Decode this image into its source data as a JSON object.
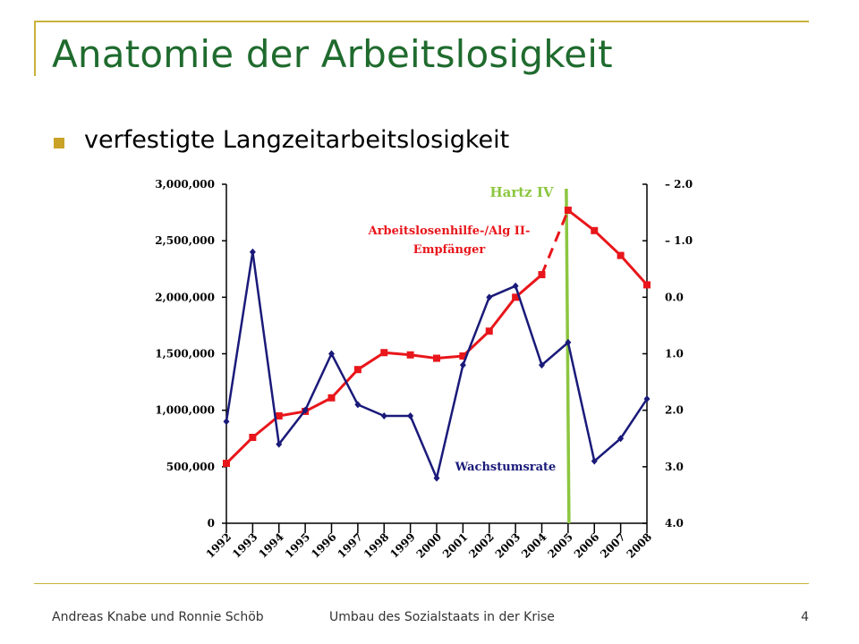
{
  "slide": {
    "title": "Anatomie der Arbeitslosigkeit",
    "bullet": "verfestigte Langzeitarbeitslosigkeit",
    "footer_left": "Andreas Knabe und Ronnie Schöb",
    "footer_center": "Umbau des Sozialstaats in der Krise",
    "page_number": "4",
    "accent_color": "#c9b23a",
    "title_color": "#1f6b2e"
  },
  "chart_data": {
    "type": "line",
    "x": [
      "1992",
      "1993",
      "1994",
      "1995",
      "1996",
      "1997",
      "1998",
      "1999",
      "2000",
      "2001",
      "2002",
      "2003",
      "2004",
      "2005",
      "2006",
      "2007",
      "2008"
    ],
    "left_axis": {
      "ticks": [
        "0",
        "500,000",
        "1,000,000",
        "1,500,000",
        "2,000,000",
        "2,500,000",
        "3,000,000"
      ],
      "ylim": [
        0,
        3000000
      ]
    },
    "right_axis": {
      "ticks": [
        "4.0",
        "3.0",
        "2.0",
        "1.0",
        "0.0",
        "– 1.0",
        "– 2.0"
      ],
      "ylim": [
        4,
        -2
      ],
      "inverted": true
    },
    "series": [
      {
        "name": "Arbeitslosenhilfe-/Alg II-Empfänger",
        "axis": "left",
        "color": "#e8161b",
        "marker": "square",
        "values": [
          530000,
          760000,
          950000,
          990000,
          1110000,
          1360000,
          1510000,
          1490000,
          1460000,
          1480000,
          1700000,
          2000000,
          2200000,
          2770000,
          2590000,
          2370000,
          2110000
        ],
        "dashed_segment": [
          "2004",
          "2005"
        ]
      },
      {
        "name": "Wachstumsrate",
        "axis": "right",
        "color": "#1a1a7a",
        "marker": "diamond",
        "values": [
          2.2,
          -0.8,
          2.6,
          2.0,
          1.0,
          1.9,
          2.1,
          2.1,
          3.2,
          1.2,
          0.0,
          -0.2,
          1.2,
          0.8,
          2.9,
          2.5,
          1.8
        ]
      }
    ],
    "annotations": [
      {
        "text": "Hartz IV",
        "x": "2005",
        "color": "#8cc63f"
      }
    ],
    "grid": false
  }
}
